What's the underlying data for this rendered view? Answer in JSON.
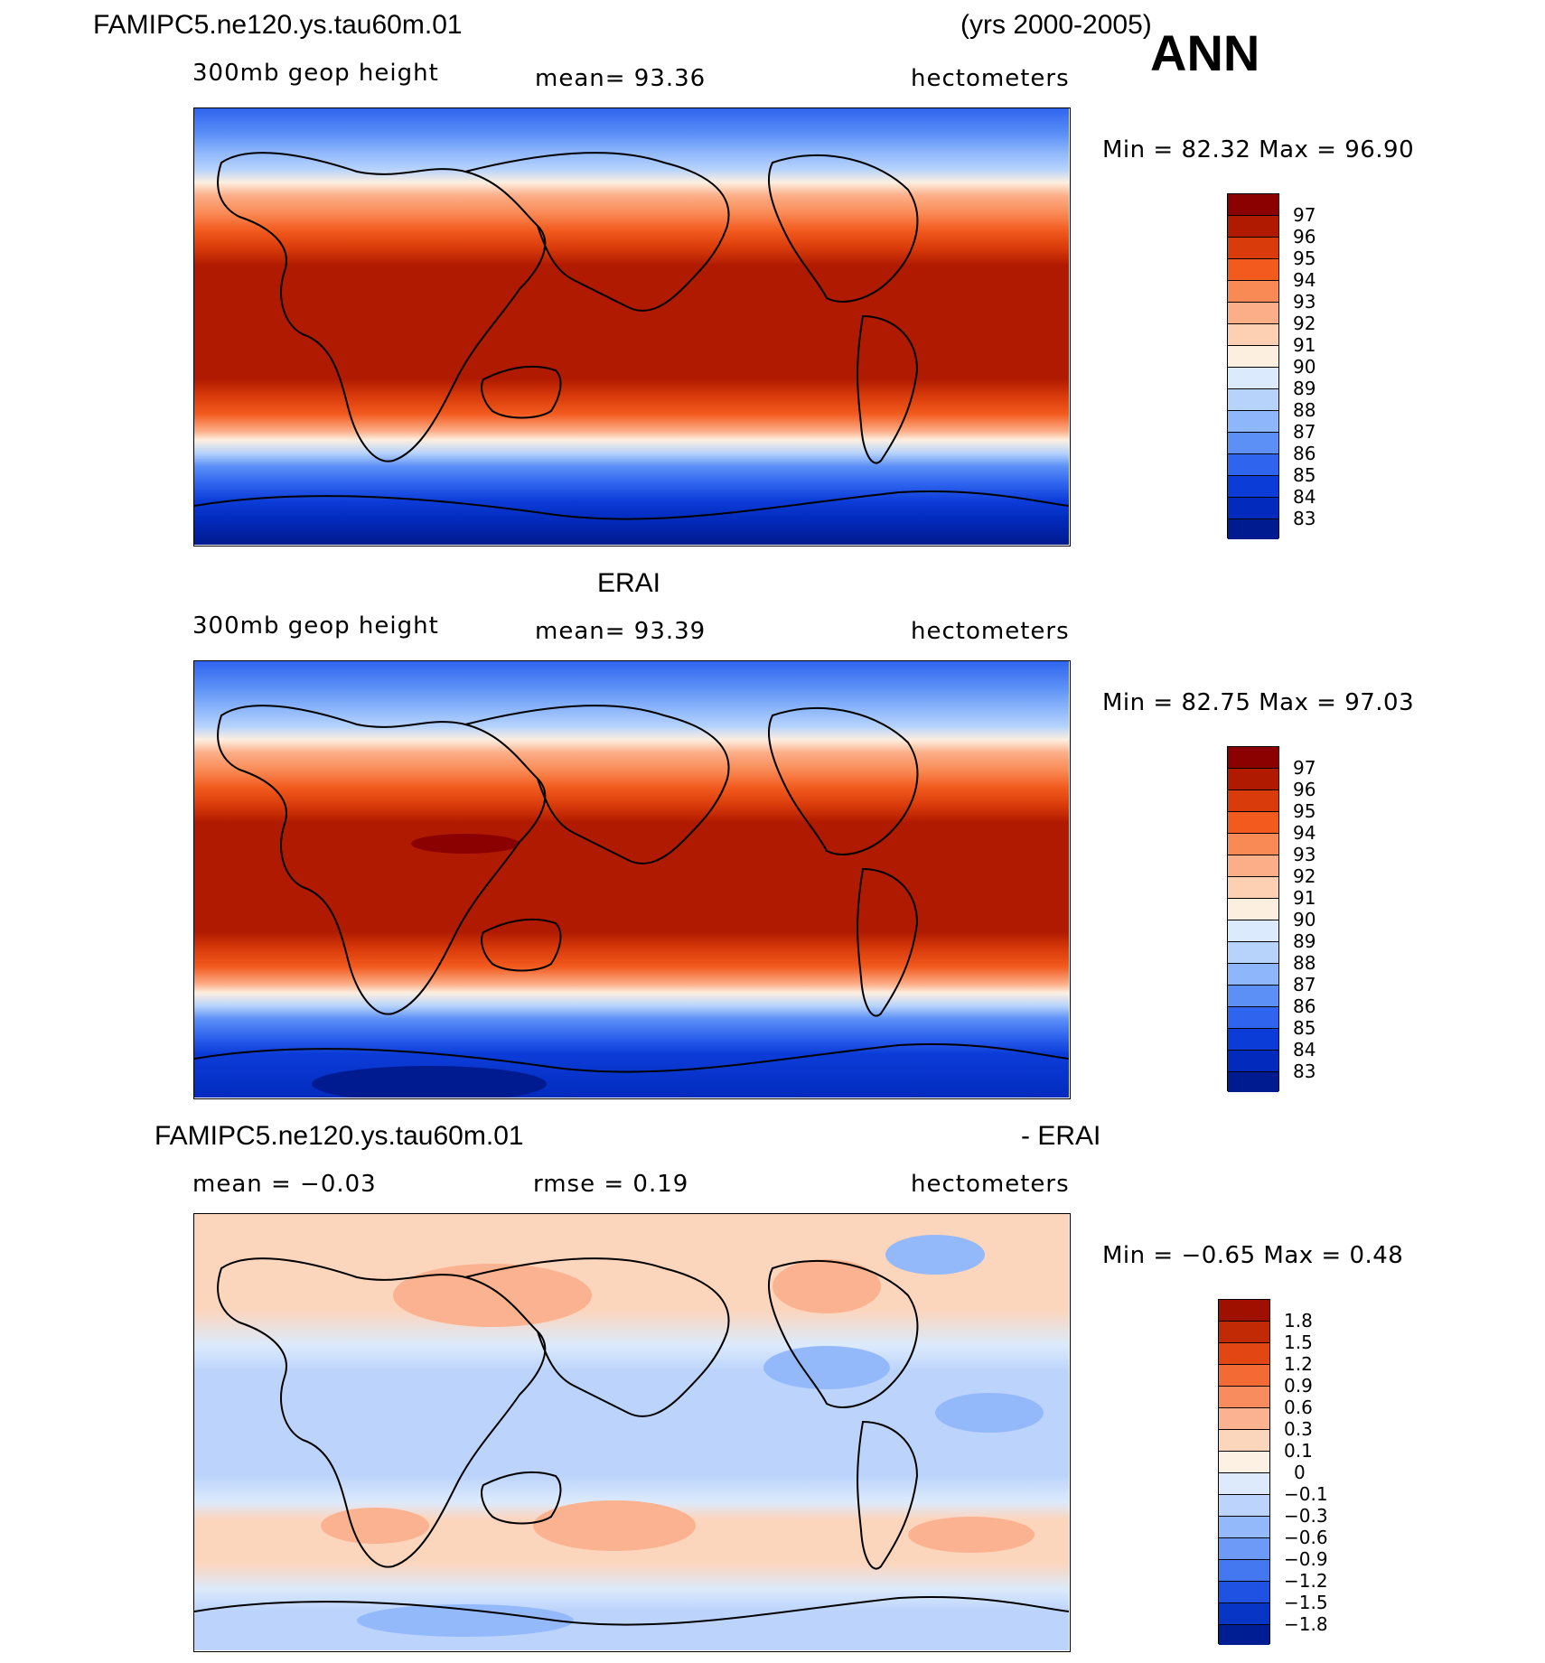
{
  "header": {
    "case_title": "FAMIPC5.ne120.ys.tau60m.01",
    "years": "(yrs 2000-2005)",
    "season": "ANN"
  },
  "panel1": {
    "left_label": "300mb  geop  height",
    "mean_label": "mean=   93.36",
    "units": "hectometers",
    "minmax": "Min  =    82.32  Max  =    96.90",
    "colorbar_ticks": [
      "97",
      "96",
      "95",
      "94",
      "93",
      "92",
      "91",
      "90",
      "89",
      "88",
      "87",
      "86",
      "85",
      "84",
      "83"
    ],
    "colors": [
      "#8b0000",
      "#b01a00",
      "#d93b0a",
      "#f25a1e",
      "#fa8a55",
      "#fcae88",
      "#fdd0b4",
      "#fdefe0",
      "#dbebfd",
      "#b7d3fc",
      "#8db6fb",
      "#5c90f7",
      "#2f64ef",
      "#0c3cd8",
      "#022bbe",
      "#001a8f"
    ]
  },
  "panel2": {
    "title": "ERAI",
    "left_label": "300mb  geop  height",
    "mean_label": "mean=   93.39",
    "units": "hectometers",
    "minmax": "Min  =    82.75  Max  =    97.03",
    "colorbar_ticks": [
      "97",
      "96",
      "95",
      "94",
      "93",
      "92",
      "91",
      "90",
      "89",
      "88",
      "87",
      "86",
      "85",
      "84",
      "83"
    ]
  },
  "panel3": {
    "case_title": "FAMIPC5.ne120.ys.tau60m.01",
    "minus_label": "- ERAI",
    "mean_label": "mean  =    −0.03",
    "rmse_label": "rmse  =      0.19",
    "units": "hectometers",
    "minmax": "Min  =    −0.65  Max  =      0.48",
    "colorbar_ticks": [
      "1.8",
      "1.5",
      "1.2",
      "0.9",
      "0.6",
      "0.3",
      "0.1",
      "0",
      "−0.1",
      "−0.3",
      "−0.6",
      "−0.9",
      "−1.2",
      "−1.5",
      "−1.8"
    ],
    "colors": [
      "#a01000",
      "#c22a05",
      "#e24612",
      "#f46a34",
      "#f98c5e",
      "#fbb290",
      "#fcd5bd",
      "#fdf1e3",
      "#dceafc",
      "#bcd4fc",
      "#94b9fb",
      "#6d9af7",
      "#4478f1",
      "#1f52e3",
      "#0735c6",
      "#001e94"
    ]
  }
}
